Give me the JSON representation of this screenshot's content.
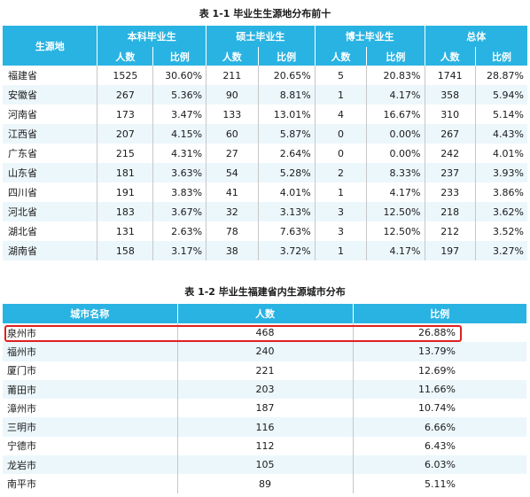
{
  "table1": {
    "caption": "表 1-1  毕业生生源地分布前十",
    "header": {
      "region": "生源地",
      "groups": [
        "本科毕业生",
        "硕士毕业生",
        "博士毕业生",
        "总体"
      ],
      "count": "人数",
      "ratio": "比例"
    },
    "rows": [
      [
        "福建省",
        "1525",
        "30.60%",
        "211",
        "20.65%",
        "5",
        "20.83%",
        "1741",
        "28.87%"
      ],
      [
        "安徽省",
        "267",
        "5.36%",
        "90",
        "8.81%",
        "1",
        "4.17%",
        "358",
        "5.94%"
      ],
      [
        "河南省",
        "173",
        "3.47%",
        "133",
        "13.01%",
        "4",
        "16.67%",
        "310",
        "5.14%"
      ],
      [
        "江西省",
        "207",
        "4.15%",
        "60",
        "5.87%",
        "0",
        "0.00%",
        "267",
        "4.43%"
      ],
      [
        "广东省",
        "215",
        "4.31%",
        "27",
        "2.64%",
        "0",
        "0.00%",
        "242",
        "4.01%"
      ],
      [
        "山东省",
        "181",
        "3.63%",
        "54",
        "5.28%",
        "2",
        "8.33%",
        "237",
        "3.93%"
      ],
      [
        "四川省",
        "191",
        "3.83%",
        "41",
        "4.01%",
        "1",
        "4.17%",
        "233",
        "3.86%"
      ],
      [
        "河北省",
        "183",
        "3.67%",
        "32",
        "3.13%",
        "3",
        "12.50%",
        "218",
        "3.62%"
      ],
      [
        "湖北省",
        "131",
        "2.63%",
        "78",
        "7.63%",
        "3",
        "12.50%",
        "212",
        "3.52%"
      ],
      [
        "湖南省",
        "158",
        "3.17%",
        "38",
        "3.72%",
        "1",
        "4.17%",
        "197",
        "3.27%"
      ]
    ]
  },
  "table2": {
    "caption": "表 1-2  毕业生福建省内生源城市分布",
    "header": [
      "城市名称",
      "人数",
      "比例"
    ],
    "rows": [
      [
        "泉州市",
        "468",
        "26.88%"
      ],
      [
        "福州市",
        "240",
        "13.79%"
      ],
      [
        "厦门市",
        "221",
        "12.69%"
      ],
      [
        "莆田市",
        "203",
        "11.66%"
      ],
      [
        "漳州市",
        "187",
        "10.74%"
      ],
      [
        "三明市",
        "116",
        "6.66%"
      ],
      [
        "宁德市",
        "112",
        "6.43%"
      ],
      [
        "龙岩市",
        "105",
        "6.03%"
      ],
      [
        "南平市",
        "89",
        "5.11%"
      ]
    ],
    "highlight_color": "#e02020"
  }
}
